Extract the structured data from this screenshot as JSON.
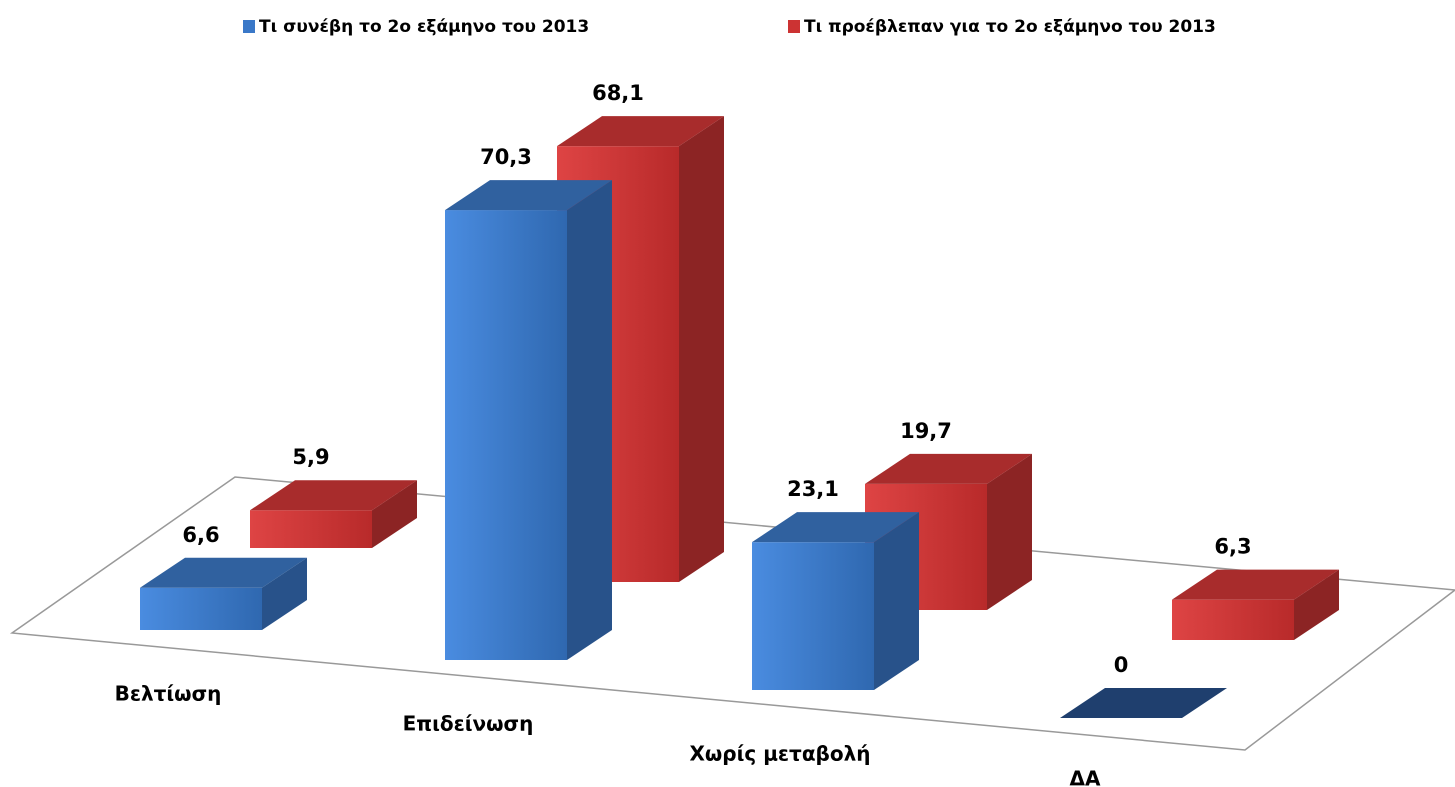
{
  "chart_data": {
    "type": "bar3d",
    "categories": [
      "Βελτίωση",
      "Επιδείνωση",
      "Χωρίς μεταβολή",
      "ΔΑ"
    ],
    "series": [
      {
        "name": "Τι συνέβη το 2ο εξάμηνο του 2013",
        "color": "#3a78c8",
        "values": [
          6.6,
          70.3,
          23.1,
          0
        ],
        "value_labels": [
          "6,6",
          "70,3",
          "23,1",
          "0"
        ]
      },
      {
        "name": "Τι προέβλεπαν για το 2ο εξάμηνο του 2013",
        "color": "#cc3333",
        "values": [
          5.9,
          68.1,
          19.7,
          6.3
        ],
        "value_labels": [
          "5,9",
          "68,1",
          "19,7",
          "6,3"
        ]
      }
    ],
    "legend": "top"
  }
}
